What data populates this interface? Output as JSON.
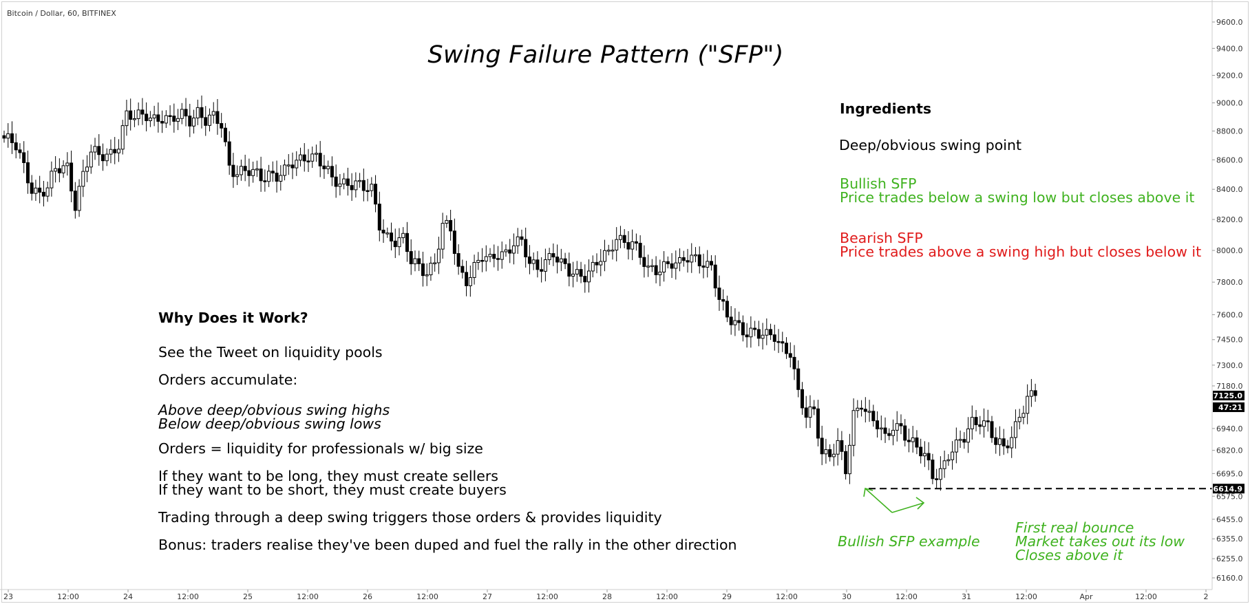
{
  "header": {
    "symbol": "Bitcoin / Dollar, 60, BITFINEX",
    "title": "Swing Failure Pattern (\"SFP\")"
  },
  "ingredients": {
    "heading": "Ingredients",
    "item1": "Deep/obvious swing point",
    "bullish_title": "Bullish SFP",
    "bullish_text": "Price trades below a swing low but closes above it",
    "bearish_title": "Bearish SFP",
    "bearish_text": "Price trades above a swing high but closes below it"
  },
  "why": {
    "heading": "Why Does it Work?",
    "line1": "See the Tweet on liquidity pools",
    "line2": "Orders accumulate:",
    "line3": "Above deep/obvious swing highs",
    "line4": "Below deep/obvious swing lows",
    "line5": "Orders = liquidity for professionals w/ big size",
    "line6": "If they want to be long, they must create sellers",
    "line7": "If they want to be short, they must create buyers",
    "line8": "Trading through a deep swing triggers those orders & provides liquidity",
    "line9": "Bonus: traders realise they've been duped and fuel the rally in the other direction"
  },
  "callouts": {
    "example": "Bullish SFP example",
    "bounce1": "First real bounce",
    "bounce2": "Market takes out its low",
    "bounce3": "Closes above it"
  },
  "colors": {
    "green": "#3fb21f",
    "red": "#e01b1b",
    "candle_bear": "#000000",
    "candle_bull": "#ffffff"
  },
  "chart_data": {
    "type": "candlestick",
    "title": "Swing Failure Pattern (\"SFP\")",
    "y_scale": "log",
    "ylim": [
      6060,
      9800
    ],
    "y_ticks": [
      "9600.0",
      "9400.0",
      "9200.0",
      "9000.0",
      "8800.0",
      "8600.0",
      "8400.0",
      "8200.0",
      "8000.0",
      "7800.0",
      "7600.0",
      "7450.0",
      "7300.0",
      "7180.0",
      "6940.0",
      "6820.0",
      "6695.0",
      "6575.0",
      "6455.0",
      "6355.0",
      "6255.0",
      "6160.0"
    ],
    "x_ticks": [
      "23",
      "12:00",
      "24",
      "12:00",
      "25",
      "12:00",
      "26",
      "12:00",
      "27",
      "12:00",
      "28",
      "12:00",
      "29",
      "12:00",
      "30",
      "12:00",
      "31",
      "12:00",
      "Apr",
      "12:00",
      "2"
    ],
    "last_price_label": "7125.0",
    "last_price": 7125.0,
    "countdown_label": "47:21",
    "support_level_label": "6614.9",
    "support_level": 6614.9,
    "grid": false,
    "series_path": [
      [
        0,
        8750
      ],
      [
        3,
        8680
      ],
      [
        5,
        8550
      ],
      [
        7,
        8420
      ],
      [
        9,
        8380
      ],
      [
        11,
        8400
      ],
      [
        13,
        8520
      ],
      [
        16,
        8560
      ],
      [
        18,
        8310
      ],
      [
        20,
        8500
      ],
      [
        22,
        8640
      ],
      [
        24,
        8620
      ],
      [
        27,
        8660
      ],
      [
        29,
        8720
      ],
      [
        31,
        8900
      ],
      [
        33,
        8880
      ],
      [
        36,
        8930
      ],
      [
        38,
        8900
      ],
      [
        40,
        8890
      ],
      [
        42,
        8850
      ],
      [
        45,
        8920
      ],
      [
        47,
        8900
      ],
      [
        49,
        8940
      ],
      [
        51,
        8860
      ],
      [
        53,
        8880
      ],
      [
        55,
        8850
      ],
      [
        57,
        8570
      ],
      [
        59,
        8520
      ],
      [
        61,
        8510
      ],
      [
        63,
        8500
      ],
      [
        65,
        8480
      ],
      [
        67,
        8520
      ],
      [
        69,
        8500
      ],
      [
        71,
        8510
      ],
      [
        73,
        8560
      ],
      [
        75,
        8600
      ],
      [
        77,
        8650
      ],
      [
        79,
        8630
      ],
      [
        81,
        8540
      ],
      [
        83,
        8450
      ],
      [
        85,
        8440
      ],
      [
        87,
        8460
      ],
      [
        89,
        8450
      ],
      [
        91,
        8400
      ],
      [
        93,
        8380
      ],
      [
        95,
        8170
      ],
      [
        97,
        8100
      ],
      [
        99,
        8070
      ],
      [
        101,
        8060
      ],
      [
        103,
        7920
      ],
      [
        105,
        7900
      ],
      [
        107,
        7880
      ],
      [
        109,
        7930
      ],
      [
        111,
        8150
      ],
      [
        113,
        8120
      ],
      [
        115,
        7880
      ],
      [
        117,
        7830
      ],
      [
        119,
        7900
      ],
      [
        121,
        7950
      ],
      [
        123,
        7920
      ],
      [
        125,
        7980
      ],
      [
        127,
        8000
      ],
      [
        129,
        8060
      ],
      [
        131,
        8040
      ],
      [
        133,
        7900
      ],
      [
        135,
        7890
      ],
      [
        137,
        7950
      ],
      [
        139,
        7990
      ],
      [
        141,
        7900
      ],
      [
        143,
        7850
      ],
      [
        145,
        7850
      ],
      [
        147,
        7860
      ],
      [
        149,
        7900
      ],
      [
        151,
        7940
      ],
      [
        153,
        7960
      ],
      [
        155,
        8090
      ],
      [
        157,
        8070
      ],
      [
        159,
        8060
      ],
      [
        161,
        7950
      ],
      [
        163,
        7860
      ],
      [
        165,
        7880
      ],
      [
        167,
        7920
      ],
      [
        169,
        7930
      ],
      [
        171,
        7900
      ],
      [
        173,
        7940
      ],
      [
        175,
        7950
      ],
      [
        177,
        7940
      ],
      [
        179,
        7900
      ],
      [
        181,
        7680
      ],
      [
        183,
        7570
      ],
      [
        185,
        7560
      ],
      [
        187,
        7520
      ],
      [
        189,
        7500
      ],
      [
        191,
        7470
      ],
      [
        193,
        7460
      ],
      [
        195,
        7480
      ],
      [
        197,
        7420
      ],
      [
        199,
        7380
      ],
      [
        201,
        7120
      ],
      [
        203,
        7000
      ],
      [
        205,
        7050
      ],
      [
        207,
        6820
      ],
      [
        209,
        6800
      ],
      [
        211,
        6840
      ],
      [
        213,
        6700
      ],
      [
        215,
        7020
      ],
      [
        217,
        7100
      ],
      [
        219,
        7010
      ],
      [
        221,
        6950
      ],
      [
        223,
        6870
      ],
      [
        225,
        6960
      ],
      [
        227,
        6960
      ],
      [
        229,
        6880
      ],
      [
        231,
        6820
      ],
      [
        233,
        6780
      ],
      [
        235,
        6690
      ],
      [
        237,
        6720
      ],
      [
        239,
        6800
      ],
      [
        241,
        6830
      ],
      [
        243,
        6880
      ],
      [
        245,
        6980
      ],
      [
        247,
        7000
      ],
      [
        249,
        6960
      ],
      [
        251,
        6850
      ],
      [
        253,
        6820
      ],
      [
        255,
        6900
      ],
      [
        257,
        7030
      ],
      [
        259,
        7110
      ],
      [
        261,
        7125
      ]
    ]
  }
}
